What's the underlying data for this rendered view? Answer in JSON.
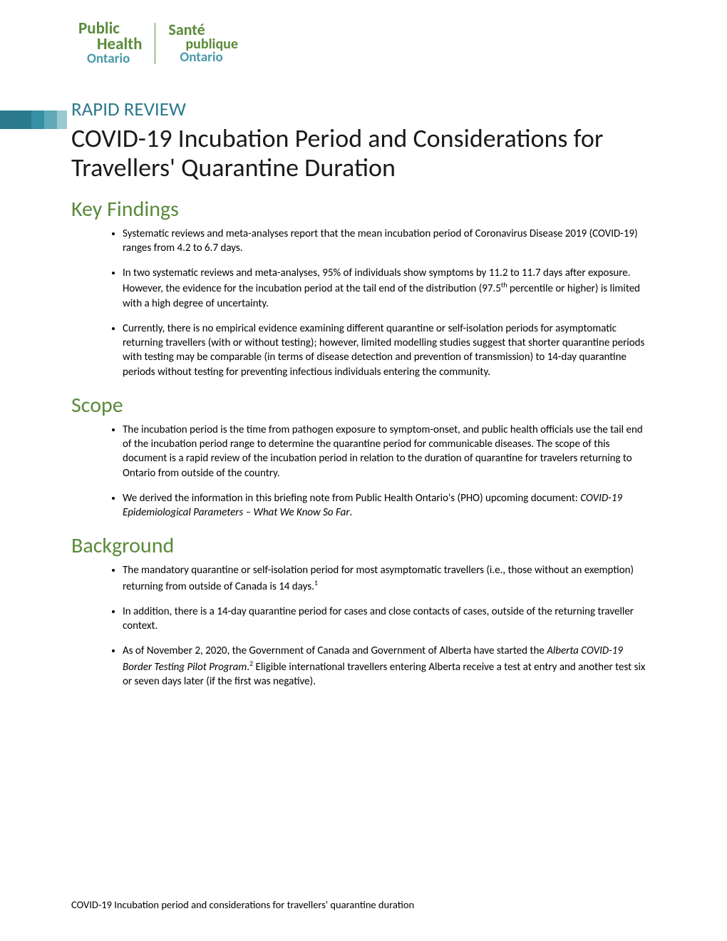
{
  "logo": {
    "en": {
      "line1": "Public",
      "line2": "Health",
      "line3": "Ontario"
    },
    "fr": {
      "line1": "Santé",
      "line2": "publique",
      "line3": "Ontario"
    }
  },
  "docType": "RAPID REVIEW",
  "title": "COVID-19 Incubation Period and Considerations for Travellers' Quarantine Duration",
  "sections": {
    "keyFindings": {
      "heading": "Key Findings",
      "items": [
        "Systematic reviews and meta-analyses report that the mean incubation period of Coronavirus Disease 2019 (COVID-19) ranges from 4.2 to 6.7 days.",
        "In two systematic reviews and meta-analyses, 95% of individuals show symptoms by 11.2 to 11.7 days after exposure. However, the evidence for the incubation period at the tail end of the distribution (97.5<sup>th</sup> percentile or higher) is limited with a high degree of uncertainty.",
        "Currently, there is no empirical evidence examining different quarantine or self-isolation periods for asymptomatic returning travellers (with or without testing); however, limited modelling studies suggest that shorter quarantine periods with testing may be comparable (in terms of disease detection and prevention of transmission) to 14-day quarantine periods without testing for preventing infectious individuals entering the community."
      ]
    },
    "scope": {
      "heading": "Scope",
      "items": [
        "The incubation period is the time from pathogen exposure to symptom-onset, and public health officials use the tail end of the incubation period range to determine the quarantine period for communicable diseases. The scope of this document is a rapid review of the incubation period in relation to the duration of quarantine for travelers returning to Ontario from outside of the country.",
        "We derived the information in this briefing note from Public Health Ontario's (PHO) upcoming document: <em>COVID-19 Epidemiological Parameters – What We Know So Far</em>."
      ]
    },
    "background": {
      "heading": "Background",
      "items": [
        "The mandatory quarantine or self-isolation period for most asymptomatic travellers (i.e., those without an exemption) returning from outside of Canada is 14 days.<sup>1</sup>",
        "In addition, there is a 14-day quarantine period for cases and close contacts of cases, outside of the returning traveller context.",
        "As of November 2, 2020, the Government of Canada and Government of Alberta have started the <em>Alberta COVID-19 Border Testing Pilot Program</em>.<sup>2</sup> Eligible international travellers entering Alberta receive a test at entry and another test six or seven days later (if the first was negative)."
      ]
    }
  },
  "footer": "COVID-19 Incubation period and considerations for travellers' quarantine duration",
  "colors": {
    "green": "#5a8a3a",
    "teal": "#2b7a8c",
    "tealLight": "#4a9aa8",
    "text": "#000000",
    "bg": "#ffffff"
  }
}
